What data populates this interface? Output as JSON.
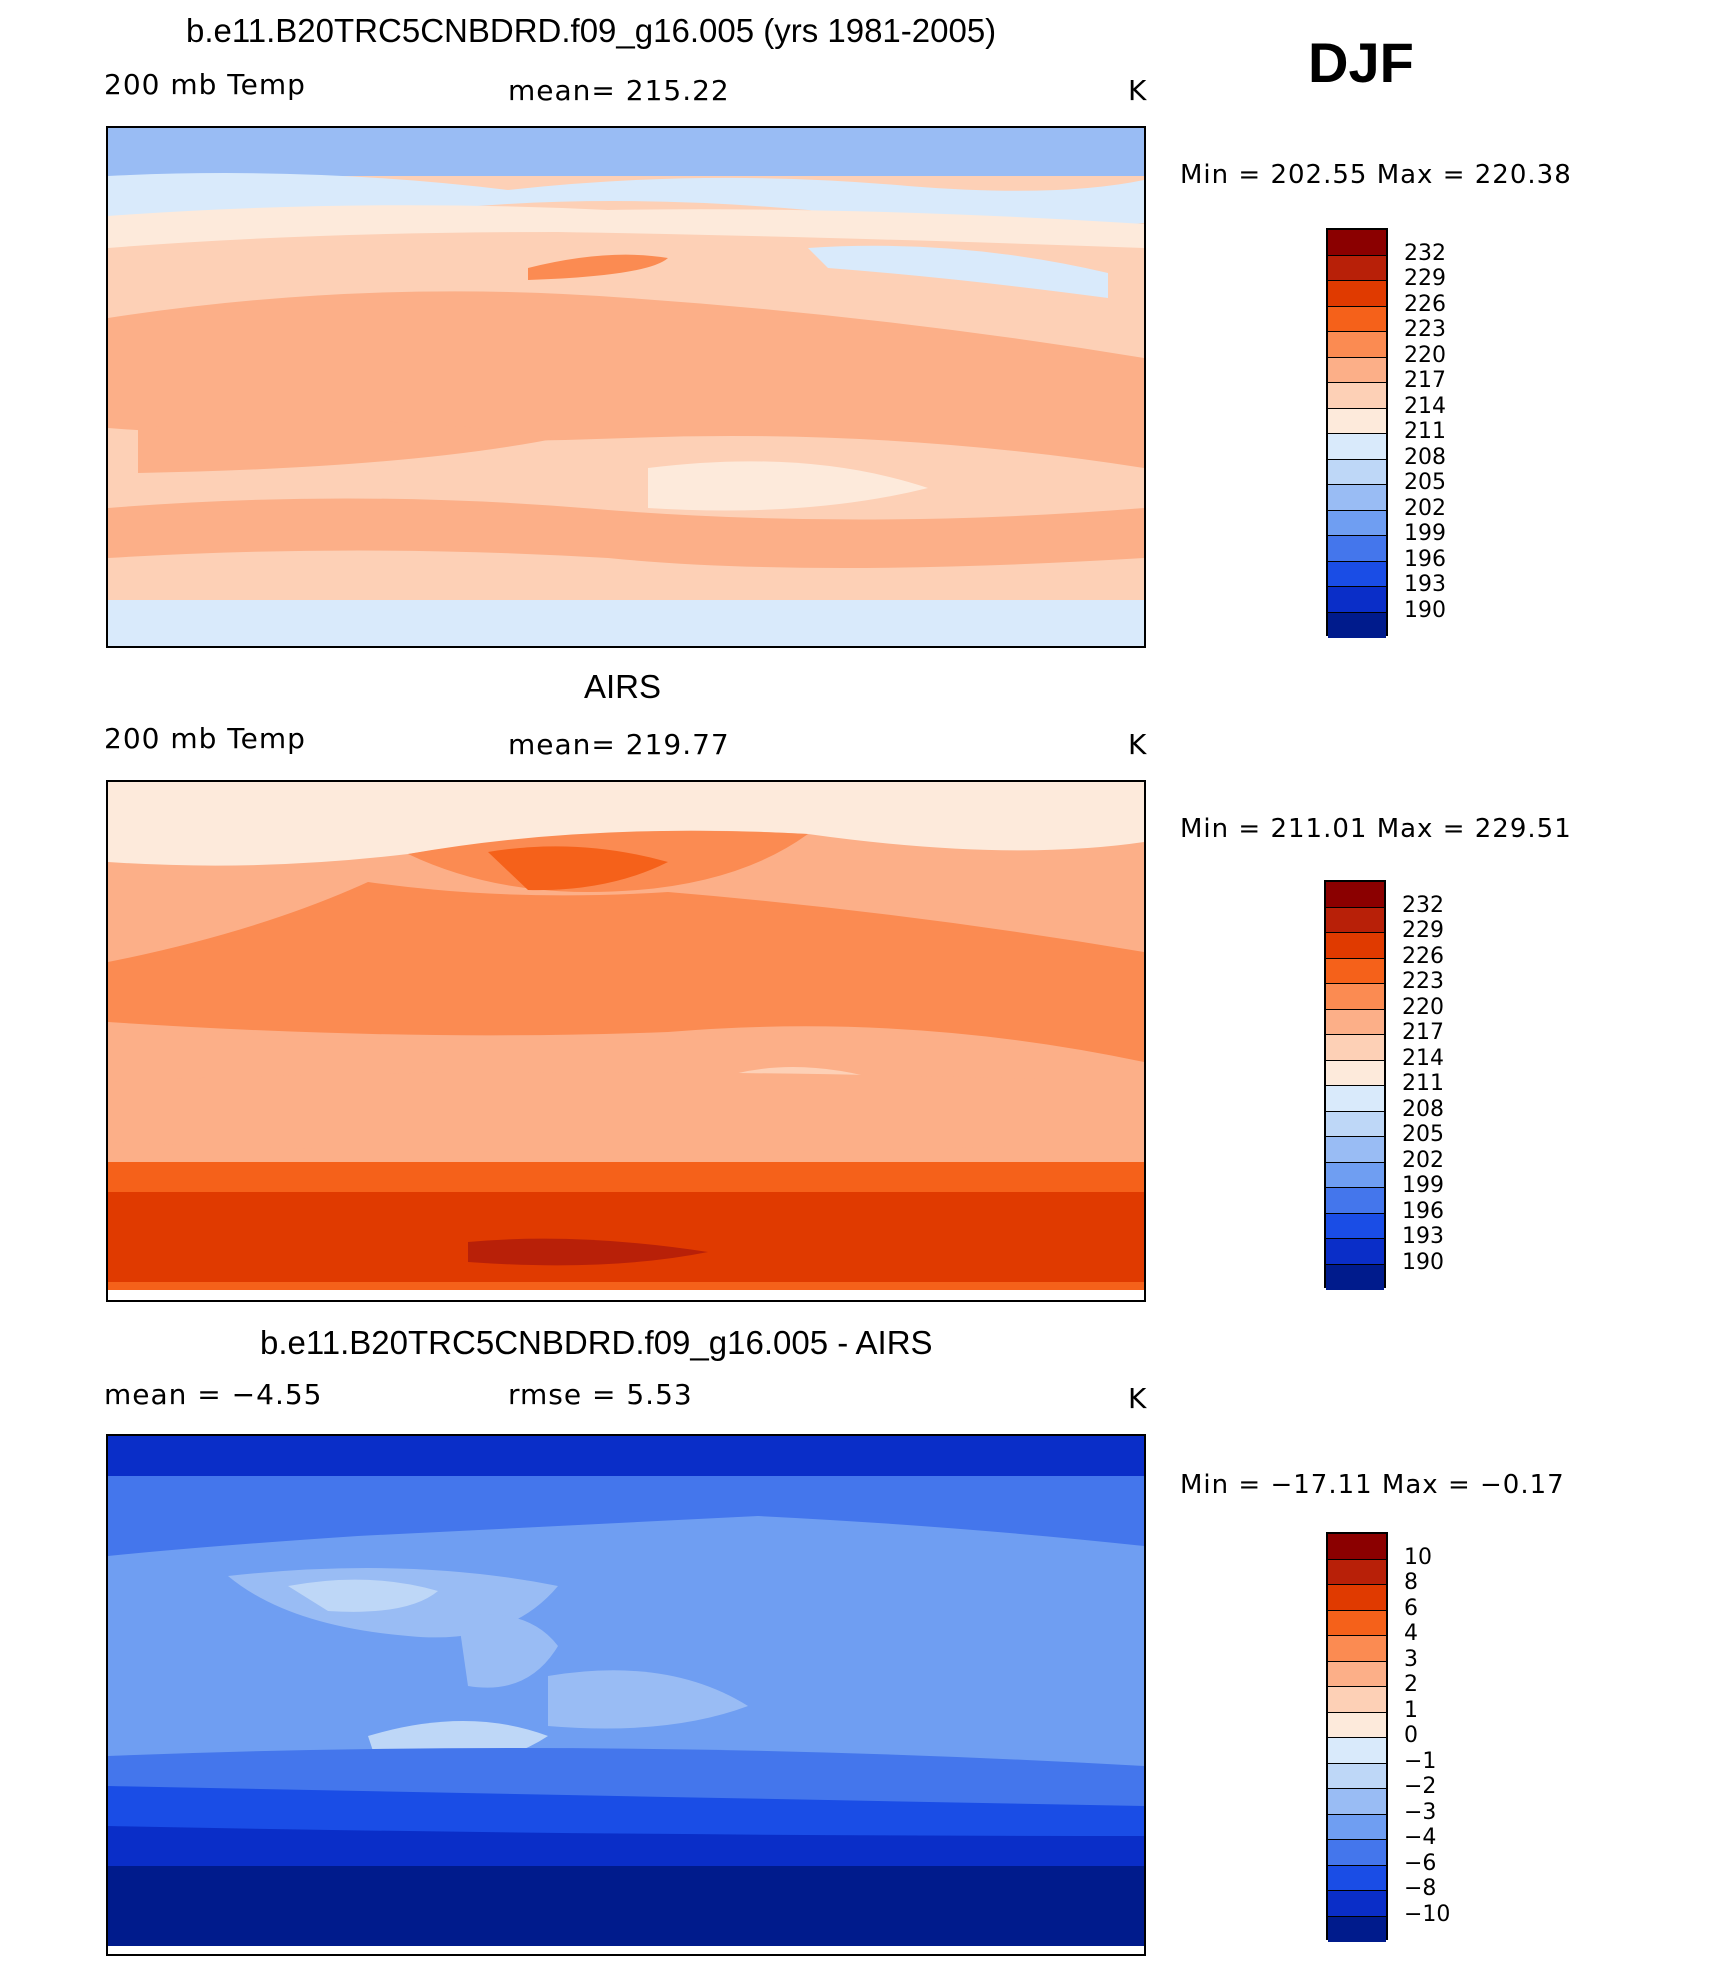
{
  "figure": {
    "season": "DJF"
  },
  "panels": [
    {
      "title": "b.e11.B20TRC5CNBDRD.f09_g16.005 (yrs 1981-2005)",
      "left_label": "200 mb Temp",
      "center_label": "mean=  215.22",
      "right_label": "K",
      "minmax": "Min  =  202.55  Max  =  220.38",
      "colorbar_labels": [
        "232",
        "229",
        "226",
        "223",
        "220",
        "217",
        "214",
        "211",
        "208",
        "205",
        "202",
        "199",
        "196",
        "193",
        "190"
      ],
      "colors": [
        "#8b0000",
        "#b82008",
        "#e03a00",
        "#f5611a",
        "#fb8b52",
        "#fcaf88",
        "#fdd0b6",
        "#fdeadb",
        "#d9eafb",
        "#bed7f7",
        "#99bcf4",
        "#6f9ef2",
        "#4476ec",
        "#1a4de6",
        "#0a2ec8",
        "#001b8c"
      ]
    },
    {
      "title": "AIRS",
      "left_label": "200 mb Temp",
      "center_label": "mean=  219.77",
      "right_label": "K",
      "minmax": "Min  =  211.01  Max  =  229.51",
      "colorbar_labels": [
        "232",
        "229",
        "226",
        "223",
        "220",
        "217",
        "214",
        "211",
        "208",
        "205",
        "202",
        "199",
        "196",
        "193",
        "190"
      ],
      "colors": [
        "#8b0000",
        "#b82008",
        "#e03a00",
        "#f5611a",
        "#fb8b52",
        "#fcaf88",
        "#fdd0b6",
        "#fdeadb",
        "#d9eafb",
        "#bed7f7",
        "#99bcf4",
        "#6f9ef2",
        "#4476ec",
        "#1a4de6",
        "#0a2ec8",
        "#001b8c"
      ]
    },
    {
      "title": "b.e11.B20TRC5CNBDRD.f09_g16.005 - AIRS",
      "left_label": "mean  =    −4.55",
      "center_label": "rmse  =     5.53",
      "right_label": "K",
      "minmax": "Min  =  −17.11  Max  =    −0.17",
      "colorbar_labels": [
        "10",
        "8",
        "6",
        "4",
        "3",
        "2",
        "1",
        "0",
        "−1",
        "−2",
        "−3",
        "−4",
        "−6",
        "−8",
        "−10"
      ],
      "colors": [
        "#8b0000",
        "#b82008",
        "#e03a00",
        "#f5611a",
        "#fb8b52",
        "#fcaf88",
        "#fdd0b6",
        "#fdeadb",
        "#d9eafb",
        "#bed7f7",
        "#99bcf4",
        "#6f9ef2",
        "#4476ec",
        "#1a4de6",
        "#0a2ec8",
        "#001b8c"
      ]
    }
  ]
}
